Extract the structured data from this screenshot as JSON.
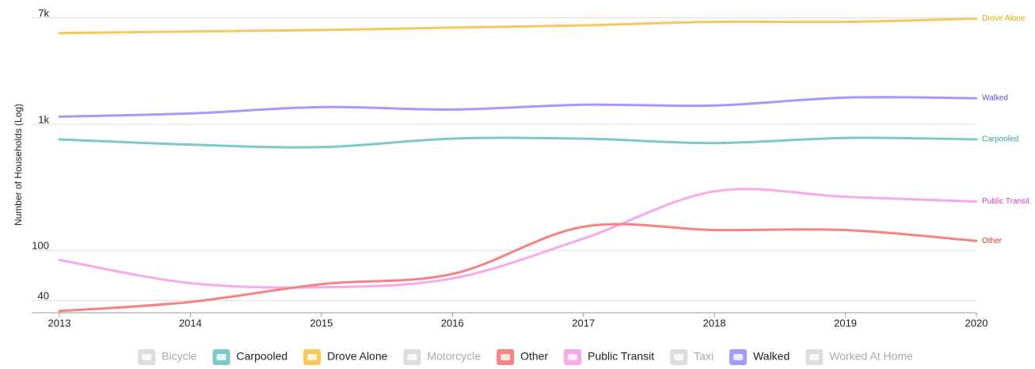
{
  "chart_data": {
    "type": "line",
    "y_label": "Number of Households (Log)",
    "log_y": true,
    "grid": true,
    "x": [
      2013,
      2014,
      2015,
      2016,
      2017,
      2018,
      2019,
      2020
    ],
    "xlim": [
      2013,
      2020
    ],
    "ylim": [
      32,
      7800
    ],
    "yticks": [
      40,
      100,
      {
        "value": 1000,
        "label": "1k"
      },
      {
        "value": 7000,
        "label": "7k"
      }
    ],
    "series": [
      {
        "name": "Drove Alone",
        "color": "#f5c95a",
        "label_color": "#e0a800",
        "values": [
          5300,
          5450,
          5600,
          5850,
          6100,
          6500,
          6500,
          6900
        ]
      },
      {
        "name": "Walked",
        "color": "#a29bfe",
        "label_color": "#5b4fd8",
        "values": [
          1150,
          1220,
          1370,
          1310,
          1430,
          1410,
          1630,
          1610
        ]
      },
      {
        "name": "Carpooled",
        "color": "#7ec8c8",
        "label_color": "#3aa0a0",
        "values": [
          760,
          690,
          660,
          770,
          770,
          710,
          780,
          760
        ]
      },
      {
        "name": "Public Transit",
        "color": "#f9a8e8",
        "label_color": "#d63cc0",
        "values": [
          84,
          55,
          51,
          60,
          124,
          294,
          266,
          244
        ]
      },
      {
        "name": "Other",
        "color": "#f58383",
        "label_color": "#d83838",
        "values": [
          33,
          39,
          54,
          65,
          154,
          145,
          145,
          119
        ]
      }
    ],
    "legend": [
      {
        "name": "Bicycle",
        "color": "#dddddd",
        "hidden": true
      },
      {
        "name": "Carpooled",
        "color": "#7ec8c8",
        "hidden": false
      },
      {
        "name": "Drove Alone",
        "color": "#f5c95a",
        "hidden": false
      },
      {
        "name": "Motorcycle",
        "color": "#dddddd",
        "hidden": true
      },
      {
        "name": "Other",
        "color": "#f58383",
        "hidden": false
      },
      {
        "name": "Public Transit",
        "color": "#f9a8e8",
        "hidden": false
      },
      {
        "name": "Taxi",
        "color": "#dddddd",
        "hidden": true
      },
      {
        "name": "Walked",
        "color": "#a29bfe",
        "hidden": false
      },
      {
        "name": "Worked At Home",
        "color": "#dddddd",
        "hidden": true
      }
    ]
  }
}
